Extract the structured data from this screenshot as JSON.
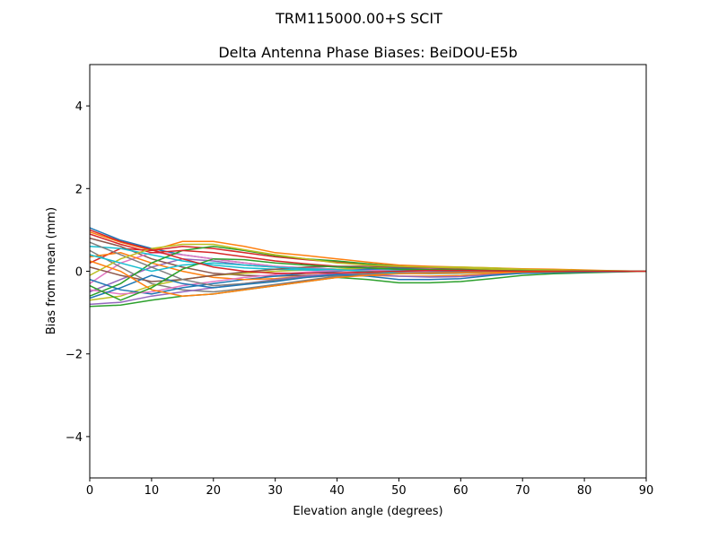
{
  "figure_title": "TRM115000.00+S  SCIT",
  "chart_data": {
    "type": "line",
    "title": "Delta Antenna Phase Biases: BeiDOU-E5b",
    "xlabel": "Elevation angle (degrees)",
    "ylabel": "Bias from mean (mm)",
    "xlim": [
      0,
      90
    ],
    "ylim": [
      -5,
      5
    ],
    "xticks": [
      0,
      10,
      20,
      30,
      40,
      50,
      60,
      70,
      80,
      90
    ],
    "yticks": [
      -4,
      -2,
      0,
      2,
      4
    ],
    "ytick_labels": [
      "−4",
      "−2",
      "0",
      "2",
      "4"
    ],
    "grid": false,
    "colors": [
      "#1f77b4",
      "#ff7f0e",
      "#2ca02c",
      "#d62728",
      "#9467bd",
      "#8c564b",
      "#e377c2",
      "#7f7f7f",
      "#bcbd22",
      "#17becf"
    ],
    "x": [
      0,
      5,
      10,
      15,
      20,
      25,
      30,
      35,
      40,
      45,
      50,
      55,
      60,
      65,
      70,
      75,
      80,
      85,
      90
    ],
    "series": [
      {
        "values": [
          1.05,
          0.75,
          0.55,
          0.4,
          0.3,
          0.2,
          0.12,
          0.08,
          0.05,
          0.03,
          0.02,
          0.01,
          0.01,
          0,
          0,
          0,
          0,
          0,
          0
        ]
      },
      {
        "values": [
          0.95,
          0.7,
          0.5,
          0.72,
          0.72,
          0.6,
          0.45,
          0.38,
          0.3,
          0.22,
          0.15,
          0.12,
          0.1,
          0.08,
          0.06,
          0.05,
          0.03,
          0.01,
          0
        ]
      },
      {
        "values": [
          -0.85,
          -0.82,
          -0.7,
          -0.6,
          -0.55,
          -0.45,
          -0.35,
          -0.25,
          -0.15,
          -0.2,
          -0.28,
          -0.28,
          -0.25,
          -0.18,
          -0.1,
          -0.06,
          -0.04,
          -0.02,
          0
        ]
      },
      {
        "values": [
          0.2,
          0.55,
          0.5,
          0.6,
          0.55,
          0.45,
          0.35,
          0.28,
          0.22,
          0.18,
          0.12,
          0.1,
          0.08,
          0.05,
          0.03,
          0.02,
          0.01,
          0,
          0
        ]
      },
      {
        "values": [
          -0.5,
          -0.2,
          0.1,
          0.3,
          0.25,
          0.15,
          0.1,
          0.05,
          0.02,
          0,
          -0.02,
          -0.03,
          -0.03,
          -0.02,
          -0.01,
          0,
          0,
          0,
          0
        ]
      },
      {
        "values": [
          0.8,
          0.6,
          0.3,
          0.1,
          -0.05,
          -0.1,
          -0.12,
          -0.1,
          -0.08,
          -0.05,
          -0.03,
          -0.02,
          -0.02,
          -0.01,
          0,
          0,
          0,
          0,
          0
        ]
      },
      {
        "values": [
          -0.3,
          0.2,
          0.45,
          0.4,
          0.3,
          0.2,
          0.12,
          0.08,
          0.05,
          0.05,
          0.06,
          0.06,
          0.05,
          0.03,
          0.02,
          0.01,
          0,
          0,
          0
        ]
      },
      {
        "values": [
          0.5,
          0.1,
          -0.3,
          -0.45,
          -0.5,
          -0.42,
          -0.32,
          -0.22,
          -0.12,
          -0.08,
          -0.05,
          -0.04,
          -0.03,
          -0.02,
          -0.01,
          0,
          0,
          0,
          0
        ]
      },
      {
        "values": [
          -0.7,
          -0.6,
          -0.35,
          -0.2,
          -0.1,
          -0.05,
          0,
          0.03,
          0.05,
          0.08,
          0.1,
          0.1,
          0.1,
          0.08,
          0.05,
          0.03,
          0.02,
          0.01,
          0
        ]
      },
      {
        "values": [
          0.6,
          0.55,
          0.4,
          0.25,
          0.15,
          0.08,
          0.05,
          0.03,
          0.02,
          0.02,
          0.03,
          0.04,
          0.04,
          0.03,
          0.02,
          0.01,
          0,
          0,
          0
        ]
      },
      {
        "values": [
          -0.2,
          -0.45,
          -0.55,
          -0.4,
          -0.3,
          -0.2,
          -0.12,
          -0.05,
          0,
          0.05,
          0.08,
          0.08,
          0.06,
          0.04,
          0.02,
          0.01,
          0,
          0,
          0
        ]
      },
      {
        "values": [
          0.35,
          0.45,
          0.2,
          0,
          -0.15,
          -0.2,
          -0.18,
          -0.12,
          -0.08,
          -0.1,
          -0.12,
          -0.12,
          -0.1,
          -0.06,
          -0.03,
          -0.02,
          -0.01,
          0,
          0
        ]
      },
      {
        "values": [
          -0.6,
          -0.3,
          0.2,
          0.5,
          0.6,
          0.5,
          0.38,
          0.3,
          0.25,
          0.18,
          0.12,
          0.09,
          0.07,
          0.05,
          0.03,
          0.02,
          0.01,
          0,
          0
        ]
      },
      {
        "values": [
          0.9,
          0.65,
          0.45,
          0.5,
          0.45,
          0.35,
          0.25,
          0.18,
          0.12,
          0.08,
          0.05,
          0.04,
          0.03,
          0.02,
          0.01,
          0.01,
          0,
          0,
          0
        ]
      },
      {
        "values": [
          -0.8,
          -0.75,
          -0.6,
          -0.5,
          -0.4,
          -0.3,
          -0.2,
          -0.12,
          -0.05,
          -0.08,
          -0.12,
          -0.14,
          -0.13,
          -0.08,
          -0.05,
          -0.03,
          -0.02,
          -0.01,
          0
        ]
      },
      {
        "values": [
          0.1,
          -0.1,
          -0.25,
          -0.2,
          -0.1,
          -0.02,
          0.05,
          0.1,
          0.12,
          0.12,
          0.1,
          0.08,
          0.06,
          0.04,
          0.02,
          0.01,
          0,
          0,
          0
        ]
      },
      {
        "values": [
          -0.45,
          -0.55,
          -0.5,
          -0.35,
          -0.25,
          -0.15,
          -0.08,
          -0.02,
          0.02,
          0.02,
          0,
          -0.02,
          -0.03,
          -0.02,
          -0.01,
          0,
          0,
          0,
          0
        ]
      },
      {
        "values": [
          0.7,
          0.4,
          0.1,
          -0.2,
          -0.35,
          -0.3,
          -0.22,
          -0.15,
          -0.1,
          -0.06,
          -0.04,
          -0.03,
          -0.02,
          -0.01,
          0,
          0,
          0,
          0,
          0
        ]
      },
      {
        "values": [
          -0.1,
          0.3,
          0.55,
          0.65,
          0.65,
          0.52,
          0.4,
          0.3,
          0.2,
          0.15,
          0.12,
          0.1,
          0.08,
          0.05,
          0.03,
          0.02,
          0.01,
          0,
          0
        ]
      },
      {
        "values": [
          0.4,
          0.2,
          0,
          0.15,
          0.2,
          0.15,
          0.1,
          0.06,
          0.04,
          0,
          -0.05,
          -0.06,
          -0.05,
          -0.03,
          -0.02,
          -0.01,
          0,
          0,
          0
        ]
      },
      {
        "values": [
          -0.65,
          -0.4,
          -0.1,
          -0.3,
          -0.4,
          -0.32,
          -0.25,
          -0.15,
          -0.08,
          -0.12,
          -0.2,
          -0.2,
          -0.18,
          -0.1,
          -0.05,
          -0.03,
          -0.02,
          -0.01,
          0
        ]
      },
      {
        "values": [
          0.25,
          0,
          -0.45,
          -0.6,
          -0.55,
          -0.45,
          -0.35,
          -0.25,
          -0.15,
          -0.1,
          -0.06,
          -0.05,
          -0.04,
          -0.03,
          -0.02,
          -0.01,
          0,
          0,
          0
        ]
      },
      {
        "values": [
          -0.35,
          -0.7,
          -0.4,
          0.05,
          0.3,
          0.28,
          0.2,
          0.15,
          0.1,
          0.08,
          0.05,
          0.04,
          0.03,
          0.02,
          0.01,
          0,
          0,
          0,
          0
        ]
      },
      {
        "values": [
          1.0,
          0.72,
          0.52,
          0.3,
          0.1,
          0,
          -0.05,
          -0.05,
          -0.04,
          -0.02,
          0,
          0.02,
          0.02,
          0.01,
          0,
          0,
          0,
          0,
          0
        ]
      }
    ]
  }
}
